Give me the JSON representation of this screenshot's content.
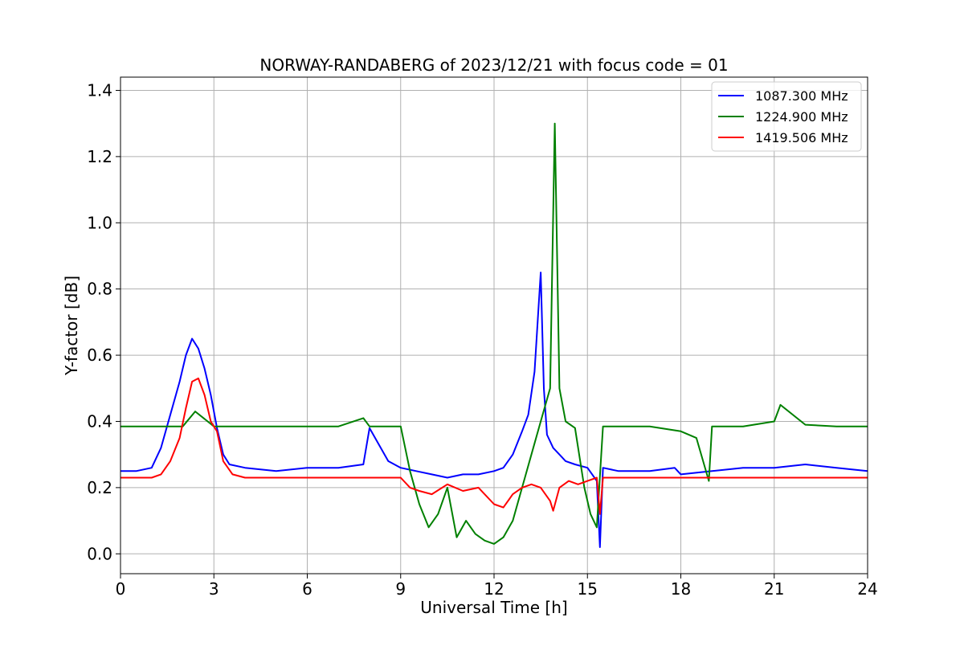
{
  "chart_data": {
    "type": "line",
    "title": "NORWAY-RANDABERG of 2023/12/21 with focus code = 01",
    "xlabel": "Universal Time [h]",
    "ylabel": "Y-factor [dB]",
    "xlim": [
      0,
      24
    ],
    "ylim": [
      -0.06,
      1.44
    ],
    "xticks": [
      0,
      3,
      6,
      9,
      12,
      15,
      18,
      21,
      24
    ],
    "yticks": [
      0.0,
      0.2,
      0.4,
      0.6,
      0.8,
      1.0,
      1.2,
      1.4
    ],
    "ytick_labels": [
      "0.0",
      "0.2",
      "0.4",
      "0.6",
      "0.8",
      "1.0",
      "1.2",
      "1.4"
    ],
    "grid": true,
    "legend_position": "top-right",
    "series": [
      {
        "name": "1087.300 MHz",
        "color": "#0000ff",
        "x": [
          0.0,
          0.5,
          1.0,
          1.3,
          1.6,
          1.9,
          2.1,
          2.3,
          2.5,
          2.7,
          2.9,
          3.1,
          3.3,
          3.5,
          4.0,
          5.0,
          6.0,
          7.0,
          7.8,
          8.0,
          8.3,
          8.6,
          9.0,
          9.5,
          10.0,
          10.5,
          11.0,
          11.5,
          12.0,
          12.3,
          12.6,
          12.9,
          13.1,
          13.3,
          13.5,
          13.6,
          13.7,
          13.9,
          14.1,
          14.3,
          14.6,
          15.0,
          15.3,
          15.4,
          15.5,
          16.0,
          17.0,
          17.8,
          18.0,
          19.0,
          20.0,
          21.0,
          22.0,
          23.0,
          24.0
        ],
        "values": [
          0.25,
          0.25,
          0.26,
          0.32,
          0.42,
          0.52,
          0.6,
          0.65,
          0.62,
          0.56,
          0.48,
          0.38,
          0.3,
          0.27,
          0.26,
          0.25,
          0.26,
          0.26,
          0.27,
          0.38,
          0.33,
          0.28,
          0.26,
          0.25,
          0.24,
          0.23,
          0.24,
          0.24,
          0.25,
          0.26,
          0.3,
          0.37,
          0.42,
          0.55,
          0.85,
          0.5,
          0.36,
          0.32,
          0.3,
          0.28,
          0.27,
          0.26,
          0.22,
          0.02,
          0.26,
          0.25,
          0.25,
          0.26,
          0.24,
          0.25,
          0.26,
          0.26,
          0.27,
          0.26,
          0.25
        ]
      },
      {
        "name": "1224.900 MHz",
        "color": "#008000",
        "x": [
          0.0,
          1.0,
          2.0,
          2.4,
          3.0,
          4.0,
          5.0,
          6.0,
          7.0,
          7.8,
          8.0,
          8.5,
          9.0,
          9.3,
          9.6,
          9.9,
          10.2,
          10.5,
          10.8,
          11.1,
          11.4,
          11.7,
          12.0,
          12.3,
          12.6,
          12.9,
          13.2,
          13.5,
          13.8,
          13.95,
          14.1,
          14.3,
          14.6,
          14.9,
          15.1,
          15.3,
          15.5,
          16.0,
          17.0,
          18.0,
          18.5,
          18.9,
          19.0,
          19.5,
          20.0,
          21.0,
          21.2,
          22.0,
          23.0,
          24.0
        ],
        "values": [
          0.385,
          0.385,
          0.385,
          0.43,
          0.385,
          0.385,
          0.385,
          0.385,
          0.385,
          0.41,
          0.385,
          0.385,
          0.385,
          0.25,
          0.15,
          0.08,
          0.12,
          0.2,
          0.05,
          0.1,
          0.06,
          0.04,
          0.03,
          0.05,
          0.1,
          0.2,
          0.3,
          0.4,
          0.5,
          1.3,
          0.5,
          0.4,
          0.38,
          0.2,
          0.12,
          0.08,
          0.385,
          0.385,
          0.385,
          0.37,
          0.35,
          0.22,
          0.385,
          0.385,
          0.385,
          0.4,
          0.45,
          0.39,
          0.385,
          0.385
        ]
      },
      {
        "name": "1419.506 MHz",
        "color": "#ff0000",
        "x": [
          0.0,
          1.0,
          1.3,
          1.6,
          1.9,
          2.1,
          2.3,
          2.5,
          2.7,
          2.9,
          3.1,
          3.3,
          3.6,
          4.0,
          5.0,
          6.0,
          7.0,
          8.0,
          9.0,
          9.3,
          9.6,
          10.0,
          10.5,
          11.0,
          11.5,
          12.0,
          12.3,
          12.6,
          12.9,
          13.2,
          13.5,
          13.8,
          13.9,
          14.1,
          14.4,
          14.7,
          15.0,
          15.3,
          15.4,
          15.5,
          16.0,
          17.0,
          18.0,
          19.0,
          20.0,
          21.0,
          22.0,
          23.0,
          24.0
        ],
        "values": [
          0.23,
          0.23,
          0.24,
          0.28,
          0.35,
          0.44,
          0.52,
          0.53,
          0.48,
          0.4,
          0.37,
          0.28,
          0.24,
          0.23,
          0.23,
          0.23,
          0.23,
          0.23,
          0.23,
          0.2,
          0.19,
          0.18,
          0.21,
          0.19,
          0.2,
          0.15,
          0.14,
          0.18,
          0.2,
          0.21,
          0.2,
          0.16,
          0.13,
          0.2,
          0.22,
          0.21,
          0.22,
          0.23,
          0.12,
          0.23,
          0.23,
          0.23,
          0.23,
          0.23,
          0.23,
          0.23,
          0.23,
          0.23,
          0.23
        ]
      }
    ]
  }
}
